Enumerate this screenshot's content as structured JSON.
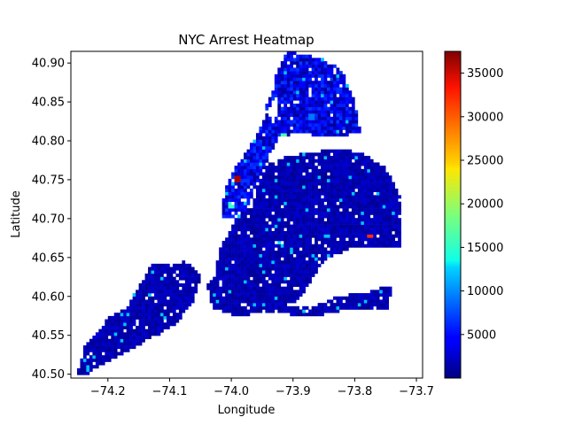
{
  "chart_data": {
    "type": "heatmap",
    "title": "NYC Arrest Heatmap",
    "xlabel": "Longitude",
    "ylabel": "Latitude",
    "xlim": [
      -74.26,
      -73.69
    ],
    "ylim": [
      40.495,
      40.915
    ],
    "x_ticks": [
      -74.2,
      -74.1,
      -74.0,
      -73.9,
      -73.8,
      -73.7
    ],
    "x_tick_labels": [
      "−74.2",
      "−74.1",
      "−74.0",
      "−73.9",
      "−73.8",
      "−73.7"
    ],
    "y_ticks": [
      40.5,
      40.55,
      40.6,
      40.65,
      40.7,
      40.75,
      40.8,
      40.85,
      40.9
    ],
    "y_tick_labels": [
      "40.50",
      "40.55",
      "40.60",
      "40.65",
      "40.70",
      "40.75",
      "40.80",
      "40.85",
      "40.90"
    ],
    "colormap": "jet",
    "colorbar": {
      "min": 0,
      "max": 37500,
      "ticks": [
        5000,
        10000,
        15000,
        20000,
        25000,
        30000,
        35000
      ],
      "tick_labels": [
        "5000",
        "10000",
        "15000",
        "20000",
        "25000",
        "30000",
        "35000"
      ]
    },
    "grid": false,
    "hotspots": [
      {
        "lon": -73.99,
        "lat": 40.752,
        "value": 36000
      },
      {
        "lon": -73.775,
        "lat": 40.677,
        "value": 31000
      },
      {
        "lon": -73.915,
        "lat": 40.806,
        "value": 17000
      },
      {
        "lon": -74.0,
        "lat": 40.717,
        "value": 16000
      },
      {
        "lon": -73.935,
        "lat": 40.84,
        "value": 11000
      },
      {
        "lon": -73.92,
        "lat": 40.67,
        "value": 13000
      },
      {
        "lon": -73.87,
        "lat": 40.83,
        "value": 9000
      }
    ]
  }
}
